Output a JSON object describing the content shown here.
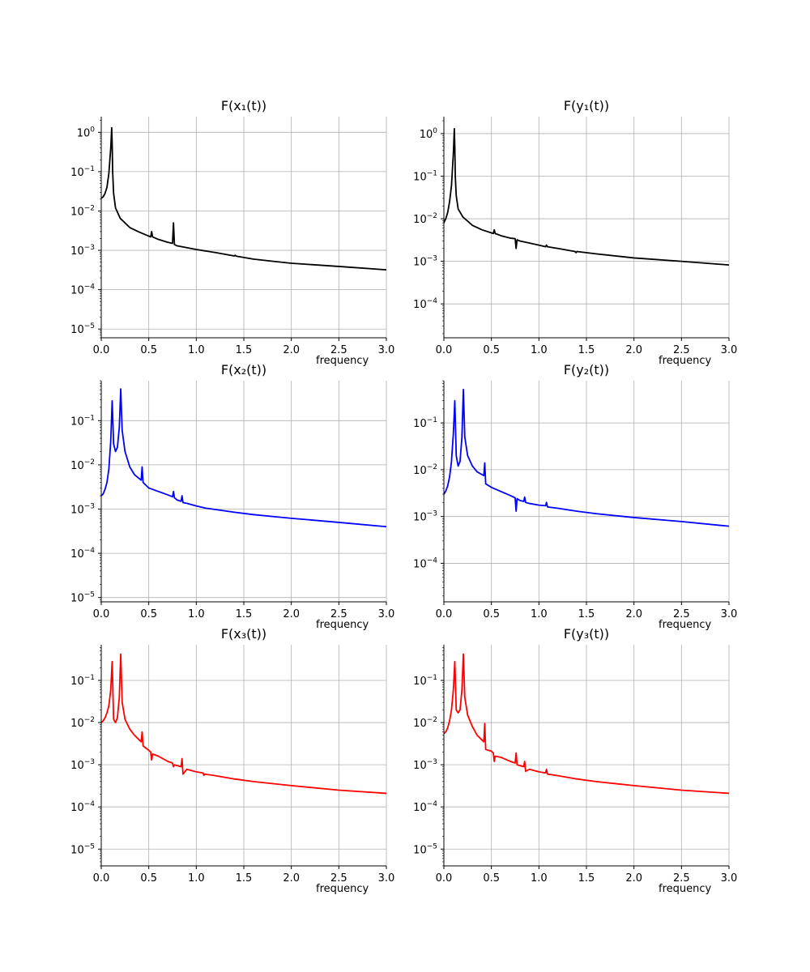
{
  "chart_data": [
    {
      "type": "line",
      "title": "F(x₁(t))",
      "xlabel": "frequency",
      "ylabel": "",
      "xlim": [
        0,
        3.0
      ],
      "ylim": [
        6e-06,
        2.5
      ],
      "yscale": "log",
      "grid": true,
      "color": "#000000",
      "xticks": [
        "0.0",
        "0.5",
        "1.0",
        "1.5",
        "2.0",
        "2.5",
        "3.0"
      ],
      "yticks": [
        {
          "base": "10",
          "exp": "0",
          "value": 1
        },
        {
          "base": "10",
          "exp": "−1",
          "value": 0.1
        },
        {
          "base": "10",
          "exp": "−2",
          "value": 0.01
        },
        {
          "base": "10",
          "exp": "−3",
          "value": 0.001
        },
        {
          "base": "10",
          "exp": "−4",
          "value": 0.0001
        },
        {
          "base": "10",
          "exp": "−5",
          "value": 1e-05
        }
      ],
      "series": [
        {
          "name": "F(x₁(t))",
          "x": [
            0,
            0.02,
            0.04,
            0.06,
            0.08,
            0.1,
            0.11,
            0.115,
            0.12,
            0.13,
            0.15,
            0.2,
            0.3,
            0.4,
            0.52,
            0.53,
            0.54,
            0.6,
            0.7,
            0.75,
            0.76,
            0.77,
            0.8,
            1.0,
            1.2,
            1.4,
            1.41,
            1.42,
            1.6,
            1.8,
            2.0,
            2.5,
            3.0
          ],
          "y": [
            0.021,
            0.023,
            0.028,
            0.04,
            0.09,
            0.4,
            1.3,
            0.5,
            0.1,
            0.028,
            0.012,
            0.0065,
            0.0038,
            0.0029,
            0.0022,
            0.003,
            0.0022,
            0.0019,
            0.0016,
            0.0015,
            0.005,
            0.0014,
            0.0013,
            0.00105,
            0.00088,
            0.00072,
            0.00075,
            0.00071,
            0.0006,
            0.00053,
            0.00047,
            0.00039,
            0.00032
          ]
        }
      ]
    },
    {
      "type": "line",
      "title": "F(y₁(t))",
      "xlabel": "frequency",
      "ylabel": "",
      "xlim": [
        0,
        3.0
      ],
      "ylim": [
        1.6e-05,
        2.5
      ],
      "yscale": "log",
      "grid": true,
      "color": "#000000",
      "xticks": [
        "0.0",
        "0.5",
        "1.0",
        "1.5",
        "2.0",
        "2.5",
        "3.0"
      ],
      "yticks": [
        {
          "base": "10",
          "exp": "0",
          "value": 1
        },
        {
          "base": "10",
          "exp": "−1",
          "value": 0.1
        },
        {
          "base": "10",
          "exp": "−2",
          "value": 0.01
        },
        {
          "base": "10",
          "exp": "−3",
          "value": 0.001
        },
        {
          "base": "10",
          "exp": "−4",
          "value": 0.0001
        }
      ],
      "series": [
        {
          "name": "F(y₁(t))",
          "x": [
            0,
            0.02,
            0.04,
            0.06,
            0.08,
            0.1,
            0.11,
            0.115,
            0.12,
            0.13,
            0.15,
            0.2,
            0.3,
            0.4,
            0.52,
            0.53,
            0.54,
            0.6,
            0.7,
            0.75,
            0.76,
            0.77,
            0.8,
            1.0,
            1.07,
            1.08,
            1.09,
            1.2,
            1.38,
            1.39,
            1.4,
            1.6,
            2.0,
            2.5,
            3.0
          ],
          "y": [
            0.008,
            0.01,
            0.014,
            0.025,
            0.06,
            0.35,
            1.3,
            0.5,
            0.1,
            0.035,
            0.017,
            0.011,
            0.007,
            0.0055,
            0.0045,
            0.0055,
            0.0045,
            0.004,
            0.0035,
            0.0034,
            0.002,
            0.0032,
            0.003,
            0.0024,
            0.0022,
            0.0024,
            0.0022,
            0.002,
            0.0017,
            0.0016,
            0.0017,
            0.0015,
            0.0012,
            0.001,
            0.00082
          ]
        }
      ]
    },
    {
      "type": "line",
      "title": "F(x₂(t))",
      "xlabel": "frequency",
      "ylabel": "",
      "xlim": [
        0,
        3.0
      ],
      "ylim": [
        8e-06,
        0.8
      ],
      "yscale": "log",
      "grid": true,
      "color": "#0000ff",
      "xticks": [
        "0.0",
        "0.5",
        "1.0",
        "1.5",
        "2.0",
        "2.5",
        "3.0"
      ],
      "yticks": [
        {
          "base": "10",
          "exp": "−1",
          "value": 0.1
        },
        {
          "base": "10",
          "exp": "−2",
          "value": 0.01
        },
        {
          "base": "10",
          "exp": "−3",
          "value": 0.001
        },
        {
          "base": "10",
          "exp": "−4",
          "value": 0.0001
        },
        {
          "base": "10",
          "exp": "−5",
          "value": 1e-05
        }
      ],
      "series": [
        {
          "name": "F(x₂(t))",
          "x": [
            0,
            0.02,
            0.04,
            0.06,
            0.08,
            0.1,
            0.115,
            0.13,
            0.15,
            0.17,
            0.19,
            0.205,
            0.22,
            0.25,
            0.3,
            0.35,
            0.42,
            0.43,
            0.44,
            0.5,
            0.7,
            0.75,
            0.76,
            0.77,
            0.8,
            0.84,
            0.85,
            0.86,
            0.9,
            1.0,
            1.1,
            1.2,
            1.4,
            1.6,
            2.0,
            2.5,
            3.0
          ],
          "y": [
            0.002,
            0.0022,
            0.0028,
            0.004,
            0.008,
            0.035,
            0.28,
            0.03,
            0.02,
            0.025,
            0.07,
            0.52,
            0.06,
            0.02,
            0.009,
            0.006,
            0.0045,
            0.009,
            0.004,
            0.003,
            0.0021,
            0.0019,
            0.0025,
            0.0018,
            0.0016,
            0.0015,
            0.002,
            0.0014,
            0.00135,
            0.00118,
            0.00105,
            0.00098,
            0.00085,
            0.00075,
            0.00062,
            0.0005,
            0.0004
          ]
        }
      ]
    },
    {
      "type": "line",
      "title": "F(y₂(t))",
      "xlabel": "frequency",
      "ylabel": "",
      "xlim": [
        0,
        3.0
      ],
      "ylim": [
        1.5e-05,
        0.8
      ],
      "yscale": "log",
      "grid": true,
      "color": "#0000ff",
      "xticks": [
        "0.0",
        "0.5",
        "1.0",
        "1.5",
        "2.0",
        "2.5",
        "3.0"
      ],
      "yticks": [
        {
          "base": "10",
          "exp": "−1",
          "value": 0.1
        },
        {
          "base": "10",
          "exp": "−2",
          "value": 0.01
        },
        {
          "base": "10",
          "exp": "−3",
          "value": 0.001
        },
        {
          "base": "10",
          "exp": "−4",
          "value": 0.0001
        }
      ],
      "series": [
        {
          "name": "F(y₂(t))",
          "x": [
            0,
            0.02,
            0.04,
            0.06,
            0.08,
            0.1,
            0.115,
            0.13,
            0.15,
            0.17,
            0.19,
            0.205,
            0.22,
            0.25,
            0.3,
            0.35,
            0.42,
            0.43,
            0.44,
            0.5,
            0.7,
            0.75,
            0.76,
            0.77,
            0.8,
            0.84,
            0.85,
            0.86,
            0.9,
            1.0,
            1.07,
            1.08,
            1.09,
            1.2,
            1.4,
            1.6,
            2.0,
            2.5,
            3.0
          ],
          "y": [
            0.003,
            0.0035,
            0.0045,
            0.007,
            0.015,
            0.06,
            0.3,
            0.02,
            0.012,
            0.015,
            0.05,
            0.52,
            0.05,
            0.02,
            0.012,
            0.009,
            0.0075,
            0.014,
            0.005,
            0.0042,
            0.0028,
            0.0025,
            0.0013,
            0.0024,
            0.0022,
            0.0021,
            0.0026,
            0.002,
            0.0019,
            0.00175,
            0.0017,
            0.002,
            0.0016,
            0.0015,
            0.0013,
            0.00115,
            0.00095,
            0.00078,
            0.00062
          ]
        }
      ]
    },
    {
      "type": "line",
      "title": "F(x₃(t))",
      "xlabel": "frequency",
      "ylabel": "",
      "xlim": [
        0,
        3.0
      ],
      "ylim": [
        4e-06,
        0.7
      ],
      "yscale": "log",
      "grid": true,
      "color": "#ff0000",
      "xticks": [
        "0.0",
        "0.5",
        "1.0",
        "1.5",
        "2.0",
        "2.5",
        "3.0"
      ],
      "yticks": [
        {
          "base": "10",
          "exp": "−1",
          "value": 0.1
        },
        {
          "base": "10",
          "exp": "−2",
          "value": 0.01
        },
        {
          "base": "10",
          "exp": "−3",
          "value": 0.001
        },
        {
          "base": "10",
          "exp": "−4",
          "value": 0.0001
        },
        {
          "base": "10",
          "exp": "−5",
          "value": 1e-05
        }
      ],
      "series": [
        {
          "name": "F(x₃(t))",
          "x": [
            0,
            0.02,
            0.04,
            0.06,
            0.08,
            0.1,
            0.115,
            0.13,
            0.15,
            0.17,
            0.19,
            0.205,
            0.22,
            0.25,
            0.3,
            0.35,
            0.42,
            0.43,
            0.44,
            0.5,
            0.52,
            0.53,
            0.54,
            0.6,
            0.7,
            0.75,
            0.76,
            0.77,
            0.8,
            0.84,
            0.85,
            0.86,
            0.9,
            1.0,
            1.07,
            1.08,
            1.09,
            1.2,
            1.4,
            1.6,
            2.0,
            2.5,
            3.0
          ],
          "y": [
            0.01,
            0.011,
            0.013,
            0.017,
            0.025,
            0.06,
            0.28,
            0.012,
            0.01,
            0.013,
            0.04,
            0.42,
            0.03,
            0.012,
            0.007,
            0.005,
            0.0035,
            0.006,
            0.0028,
            0.0022,
            0.002,
            0.0013,
            0.0018,
            0.0016,
            0.0012,
            0.0011,
            0.0009,
            0.001,
            0.00095,
            0.0009,
            0.0014,
            0.0006,
            0.00078,
            0.00068,
            0.00064,
            0.00056,
            0.0006,
            0.00055,
            0.00046,
            0.0004,
            0.00032,
            0.00025,
            0.00021
          ]
        }
      ]
    },
    {
      "type": "line",
      "title": "F(y₃(t))",
      "xlabel": "frequency",
      "ylabel": "",
      "xlim": [
        0,
        3.0
      ],
      "ylim": [
        4e-06,
        0.7
      ],
      "yscale": "log",
      "grid": true,
      "color": "#ff0000",
      "xticks": [
        "0.0",
        "0.5",
        "1.0",
        "1.5",
        "2.0",
        "2.5",
        "3.0"
      ],
      "yticks": [
        {
          "base": "10",
          "exp": "−1",
          "value": 0.1
        },
        {
          "base": "10",
          "exp": "−2",
          "value": 0.01
        },
        {
          "base": "10",
          "exp": "−3",
          "value": 0.001
        },
        {
          "base": "10",
          "exp": "−4",
          "value": 0.0001
        },
        {
          "base": "10",
          "exp": "−5",
          "value": 1e-05
        }
      ],
      "series": [
        {
          "name": "F(y₃(t))",
          "x": [
            0,
            0.02,
            0.04,
            0.06,
            0.08,
            0.1,
            0.115,
            0.13,
            0.15,
            0.17,
            0.19,
            0.205,
            0.22,
            0.25,
            0.3,
            0.35,
            0.42,
            0.43,
            0.44,
            0.5,
            0.52,
            0.53,
            0.54,
            0.6,
            0.7,
            0.75,
            0.76,
            0.77,
            0.8,
            0.84,
            0.85,
            0.86,
            0.9,
            1.0,
            1.07,
            1.08,
            1.09,
            1.2,
            1.4,
            1.6,
            2.0,
            2.5,
            3.0
          ],
          "y": [
            0.0055,
            0.006,
            0.0075,
            0.011,
            0.02,
            0.06,
            0.28,
            0.02,
            0.017,
            0.02,
            0.06,
            0.42,
            0.04,
            0.015,
            0.008,
            0.005,
            0.0035,
            0.0095,
            0.0023,
            0.0021,
            0.0019,
            0.0012,
            0.0016,
            0.0015,
            0.0012,
            0.0011,
            0.0019,
            0.001,
            0.00095,
            0.0009,
            0.0012,
            0.0007,
            0.00078,
            0.00068,
            0.00064,
            0.00078,
            0.0006,
            0.00055,
            0.00046,
            0.0004,
            0.00032,
            0.00025,
            0.00021
          ]
        }
      ]
    }
  ]
}
